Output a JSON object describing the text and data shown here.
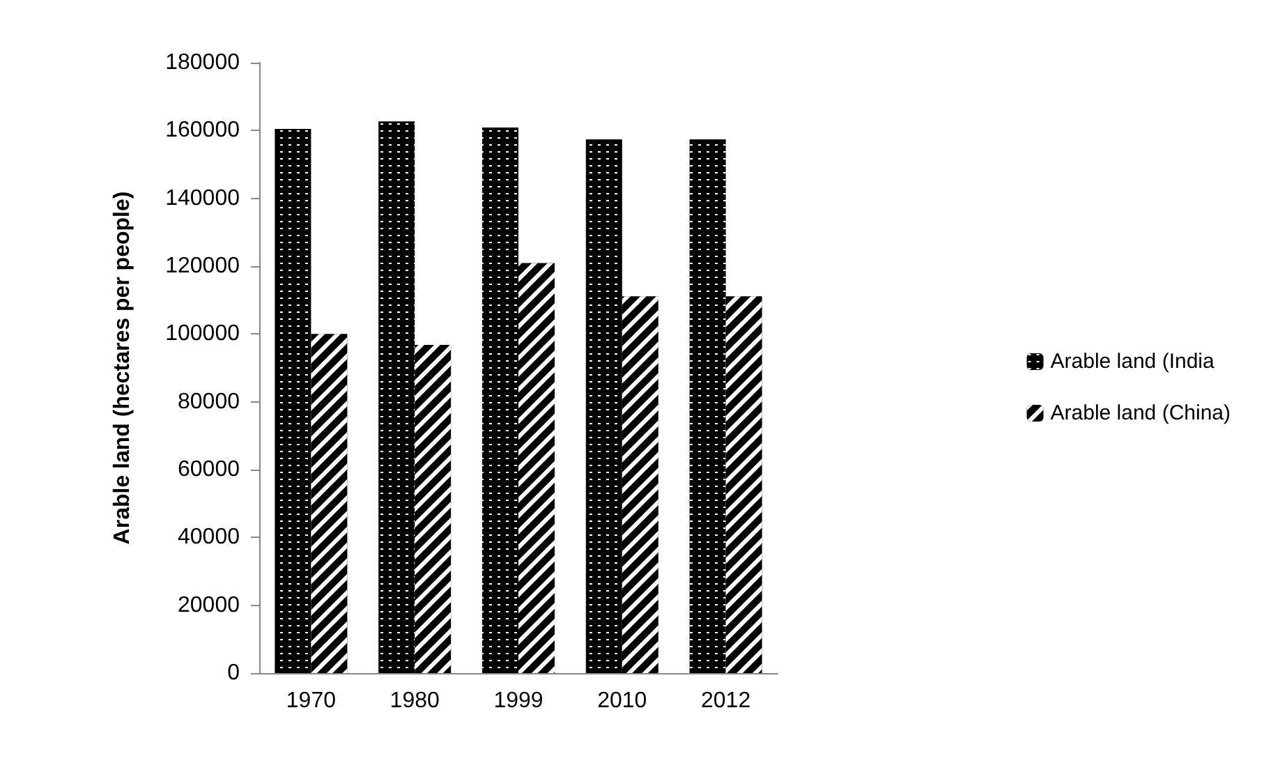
{
  "chart_data": {
    "type": "bar",
    "ylabel": "Arable land (hectares per people)",
    "categories": [
      "1970",
      "1980",
      "1999",
      "2010",
      "2012"
    ],
    "series": [
      {
        "name": "Arable land (India",
        "color": "#000000",
        "values": [
          160500,
          162700,
          160900,
          157400,
          157400
        ]
      },
      {
        "name": "Arable land (China)",
        "color": "#000000",
        "values": [
          100000,
          96800,
          120900,
          111100,
          111100
        ]
      }
    ],
    "ylim": [
      0,
      180000
    ],
    "yticks": [
      0,
      20000,
      40000,
      60000,
      80000,
      100000,
      120000,
      140000,
      160000,
      180000
    ],
    "grid": false,
    "legend": "right"
  }
}
